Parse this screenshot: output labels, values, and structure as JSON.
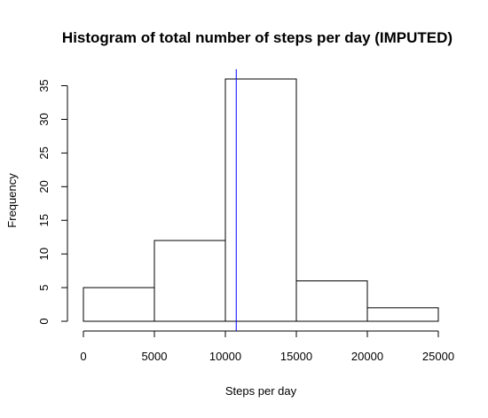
{
  "chart_data": {
    "type": "bar",
    "title": "Histogram of total number of steps per day (IMPUTED)",
    "xlabel": "Steps per day",
    "ylabel": "Frequency",
    "bins": [
      {
        "start": 0,
        "end": 5000,
        "count": 5
      },
      {
        "start": 5000,
        "end": 10000,
        "count": 12
      },
      {
        "start": 10000,
        "end": 15000,
        "count": 36
      },
      {
        "start": 15000,
        "end": 20000,
        "count": 6
      },
      {
        "start": 20000,
        "end": 25000,
        "count": 2
      }
    ],
    "xticks": [
      0,
      5000,
      10000,
      15000,
      20000,
      25000
    ],
    "yticks": [
      0,
      5,
      10,
      15,
      20,
      25,
      30,
      35
    ],
    "xlim": [
      0,
      25000
    ],
    "ylim": [
      0,
      36
    ],
    "reference_line": {
      "x": 10766,
      "color": "#0000ff"
    },
    "grid": false,
    "bar_fill": "#ffffff",
    "bar_stroke": "#000000"
  }
}
